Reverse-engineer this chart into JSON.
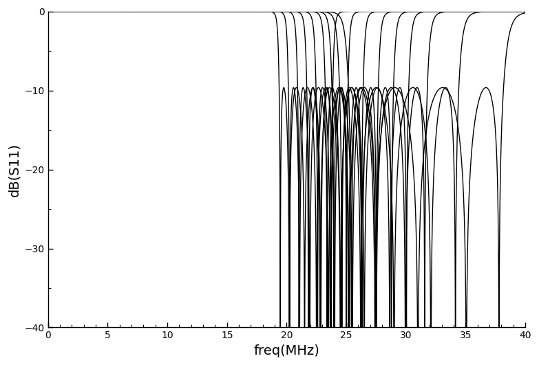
{
  "title": "",
  "xlabel": "freq(MHz)",
  "ylabel": "dB(S11)",
  "xlim": [
    0,
    40
  ],
  "ylim": [
    -40,
    0
  ],
  "xticks": [
    0,
    5,
    10,
    15,
    20,
    25,
    30,
    35,
    40
  ],
  "yticks": [
    0,
    -10,
    -20,
    -30,
    -40
  ],
  "line_color": "#000000",
  "line_width": 1.0,
  "background_color": "#ffffff",
  "num_curves": 9,
  "freq_min": 0.01,
  "freq_max": 40,
  "num_points": 8000,
  "center_freqs": [
    21.5,
    22.5,
    23.5,
    24.5,
    25.5,
    26.5,
    27.5,
    29.0,
    31.0
  ],
  "bandwidths": [
    4.5,
    5.0,
    5.5,
    6.0,
    6.5,
    7.0,
    8.0,
    10.0,
    13.0
  ],
  "filter_order": 5,
  "ripple_dB": 0.5,
  "figsize": [
    7.83,
    5.31
  ],
  "dpi": 100
}
